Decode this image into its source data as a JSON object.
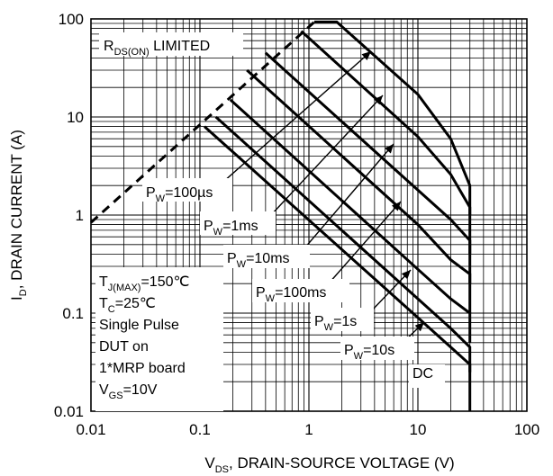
{
  "chart_data": {
    "type": "line",
    "title": "",
    "xlabel": {
      "main": "V",
      "sub": "DS",
      "rest": ", DRAIN-SOURCE VOLTAGE (V)"
    },
    "ylabel": {
      "main": "I",
      "sub": "D",
      "rest": ", DRAIN CURRENT (A)"
    },
    "xscale": "log",
    "yscale": "log",
    "xlim": [
      0.01,
      100
    ],
    "ylim": [
      0.01,
      100
    ],
    "grid": true,
    "x_ticks": [
      "0.01",
      "0.1",
      "1",
      "10",
      "100"
    ],
    "y_ticks": [
      "0.01",
      "0.1",
      "1",
      "10",
      "100"
    ],
    "limit_label": {
      "main": "R",
      "sub": "DS(ON)",
      "rest": " LIMITED"
    },
    "rdson_limit": {
      "style": "dashed",
      "x": [
        0.01,
        1.12
      ],
      "y": [
        0.84,
        93
      ]
    },
    "pulse_labels": [
      {
        "main": "P",
        "sub": "W",
        "rest": "=100µs"
      },
      {
        "main": "P",
        "sub": "W",
        "rest": "=1ms"
      },
      {
        "main": "P",
        "sub": "W",
        "rest": "=10ms"
      },
      {
        "main": "P",
        "sub": "W",
        "rest": "=100ms"
      },
      {
        "main": "P",
        "sub": "W",
        "rest": "=1s"
      },
      {
        "main": "P",
        "sub": "W",
        "rest": "=10s"
      },
      {
        "main": "",
        "sub": "",
        "rest": "DC"
      }
    ],
    "series": [
      {
        "x": [
          1.12,
          1.8,
          10,
          20,
          30,
          30
        ],
        "y": [
          93,
          93,
          17,
          6,
          2,
          1
        ]
      },
      {
        "x": [
          0.85,
          10,
          20,
          30,
          30
        ],
        "y": [
          75,
          6.3,
          2.6,
          1.2,
          0.4
        ]
      },
      {
        "x": [
          0.4,
          10,
          20,
          30,
          30
        ],
        "y": [
          45,
          1.8,
          0.9,
          0.55,
          0.2
        ]
      },
      {
        "x": [
          0.27,
          10,
          20,
          30,
          30
        ],
        "y": [
          30,
          0.8,
          0.35,
          0.25,
          0.1
        ]
      },
      {
        "x": [
          0.19,
          10,
          20,
          30,
          30
        ],
        "y": [
          15,
          0.28,
          0.14,
          0.1,
          0.05
        ]
      },
      {
        "x": [
          0.14,
          10,
          20,
          30,
          30
        ],
        "y": [
          10,
          0.14,
          0.07,
          0.045,
          0.025
        ]
      },
      {
        "x": [
          0.11,
          10,
          20,
          30,
          30
        ],
        "y": [
          8,
          0.09,
          0.045,
          0.03,
          0.01
        ]
      }
    ],
    "conditions": [
      {
        "main": "T",
        "sub": "J(MAX)",
        "rest": "=150℃"
      },
      {
        "main": "T",
        "sub": "C",
        "rest": "=25℃"
      },
      {
        "main": "",
        "sub": "",
        "rest": "Single Pulse"
      },
      {
        "main": "",
        "sub": "",
        "rest": "DUT on"
      },
      {
        "main": "",
        "sub": "",
        "rest": "1*MRP board"
      },
      {
        "main": "V",
        "sub": "GS",
        "rest": "=10V"
      }
    ]
  }
}
